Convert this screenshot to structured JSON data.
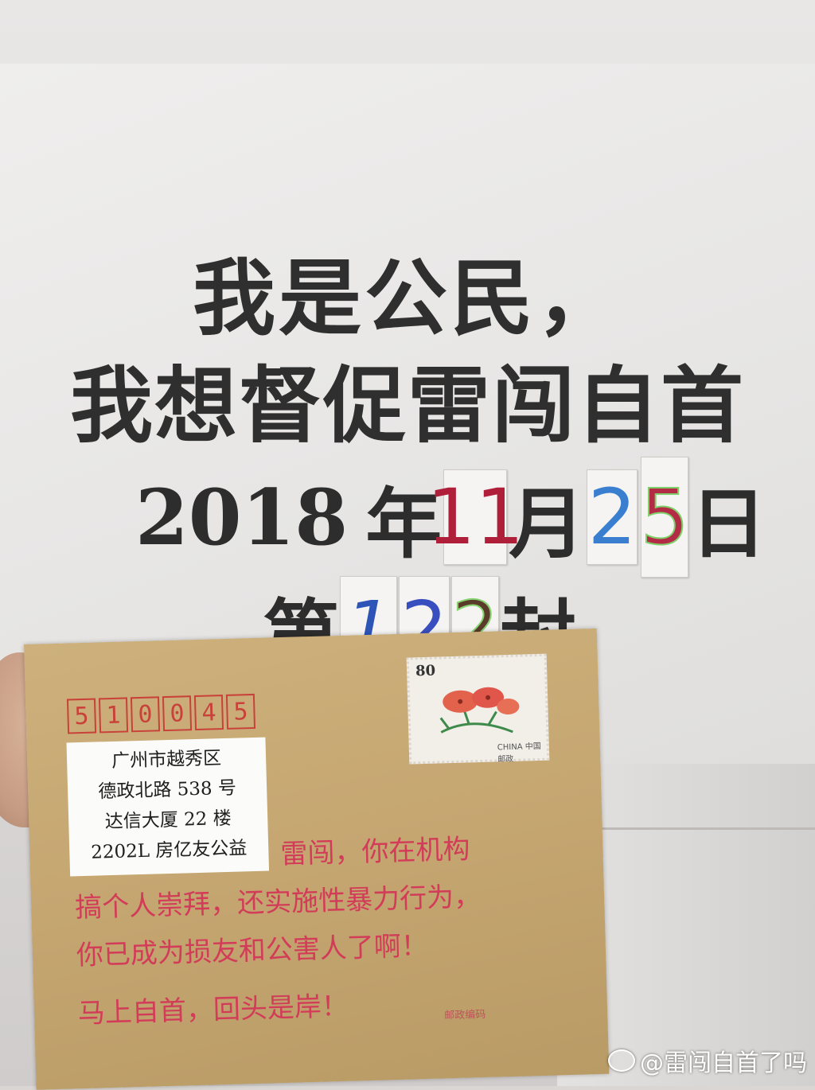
{
  "poster": {
    "line1": "我是公民，",
    "line2": "我想督促雷闯自首",
    "date": {
      "year": "2018",
      "year_char": "年",
      "month": "11",
      "month_char": "月",
      "day_tens": "2",
      "day_ones": "5",
      "day_char": "日"
    },
    "count": {
      "prefix": "第",
      "d1": "1",
      "d2": "2",
      "d3": "2",
      "suffix": "封"
    }
  },
  "envelope": {
    "zip_digits": [
      "5",
      "1",
      "0",
      "0",
      "4",
      "5"
    ],
    "stamp": {
      "value": "80",
      "country": "CHINA 中国邮政"
    },
    "address_lines": [
      "广州市越秀区",
      "德政北路 538 号",
      "达信大厦 22 楼",
      "2202L 房亿友公益"
    ],
    "message_lines": [
      "雷闯，你在机构",
      "搞个人崇拜，还实施性暴力行为，",
      "你已成为损友和公害人了啊！",
      "马上自首，回头是岸！"
    ],
    "postcode_note": "邮政编码"
  },
  "watermark": "@雷闯自首了吗"
}
